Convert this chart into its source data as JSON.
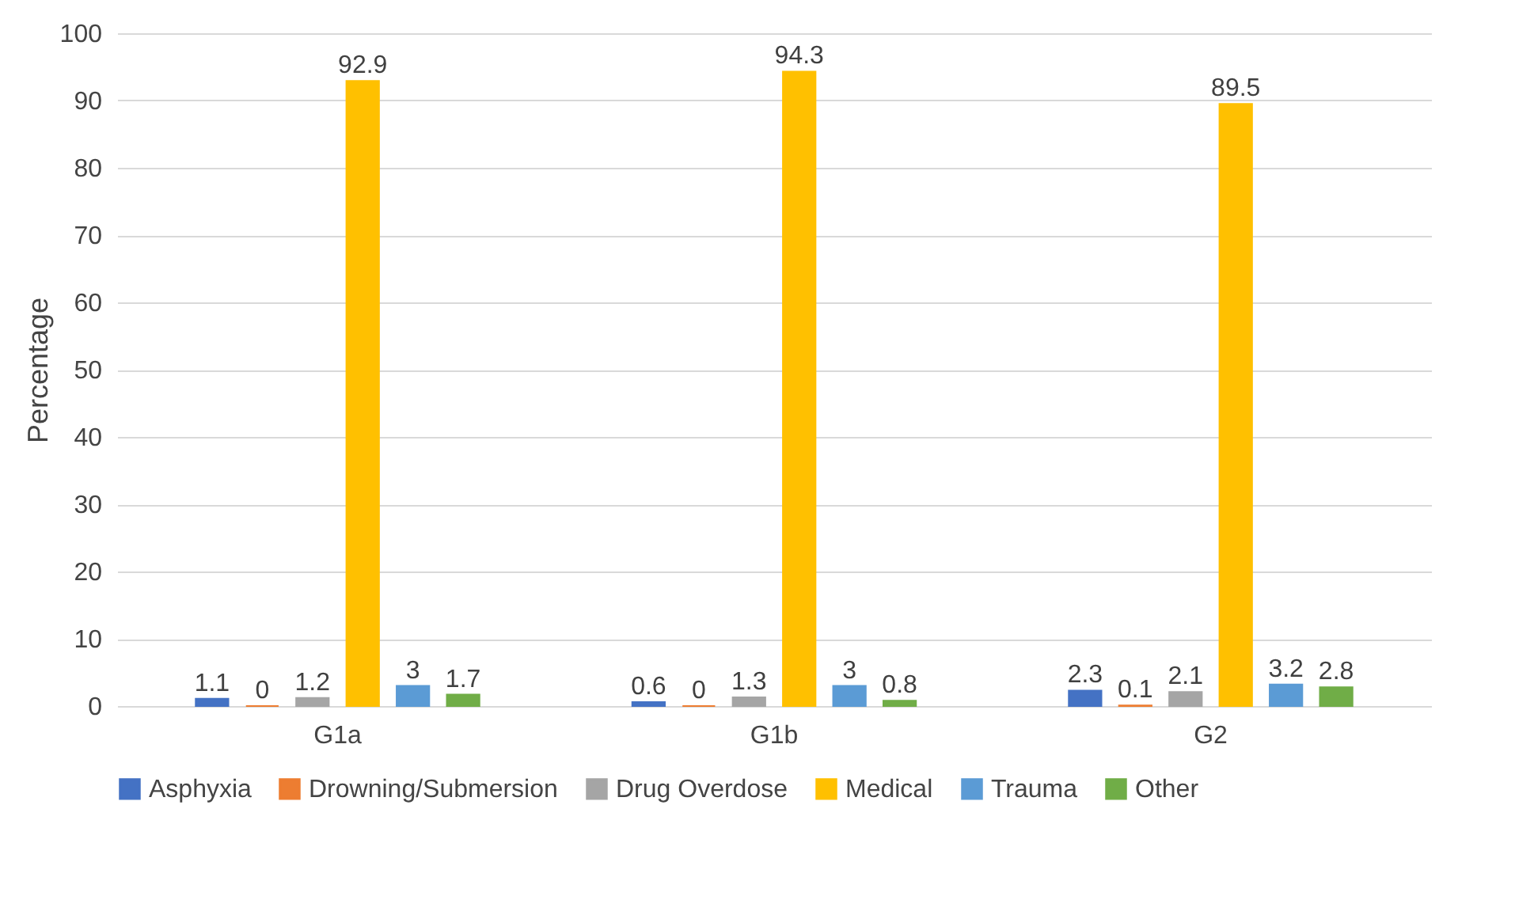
{
  "chart_data": {
    "type": "bar",
    "ylabel": "Percentage",
    "categories": [
      "G1a",
      "G1b",
      "G2"
    ],
    "series": [
      {
        "name": "Asphyxia",
        "color": "#4472c4",
        "values": [
          1.1,
          0.6,
          2.3
        ]
      },
      {
        "name": "Drowning/Submersion",
        "color": "#ed7d31",
        "values": [
          0,
          0,
          0.1
        ]
      },
      {
        "name": "Drug Overdose",
        "color": "#a5a5a5",
        "values": [
          1.2,
          1.3,
          2.1
        ]
      },
      {
        "name": "Medical",
        "color": "#ffc000",
        "values": [
          92.9,
          94.3,
          89.5
        ]
      },
      {
        "name": "Trauma",
        "color": "#5b9bd5",
        "values": [
          3,
          3,
          3.2
        ]
      },
      {
        "name": "Other",
        "color": "#70ad47",
        "values": [
          1.7,
          0.8,
          2.8
        ]
      }
    ],
    "ylim": [
      0,
      100
    ],
    "yticks": [
      0,
      10,
      20,
      30,
      40,
      50,
      60,
      70,
      80,
      90,
      100
    ],
    "grid": "y",
    "legend": "bottom",
    "data_labels": true
  }
}
